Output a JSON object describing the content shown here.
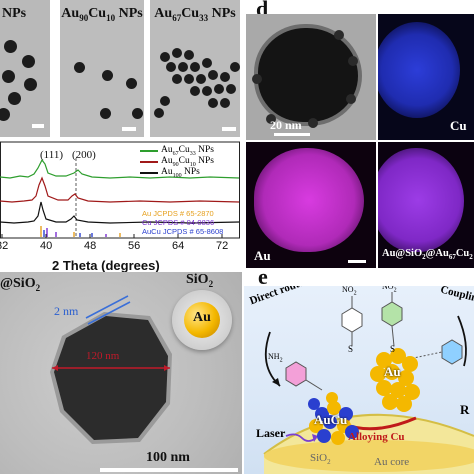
{
  "panel_d_letter": "d",
  "panel_e_letter": "e",
  "tem_labels": [
    {
      "main": "NPs",
      "prefix": "",
      "sub": ""
    },
    {
      "main": "Au",
      "sub1": "90",
      "mid": "Cu",
      "sub2": "10",
      "tail": " NPs"
    },
    {
      "main": "Au",
      "sub1": "67",
      "mid": "Cu",
      "sub2": "33",
      "tail": " NPs"
    }
  ],
  "xrd": {
    "peak1": "(111)",
    "peak2": "(200)",
    "xlabel": "2 Theta (degrees)",
    "xticks": [
      "32",
      "40",
      "48",
      "56",
      "64",
      "72"
    ],
    "legend": [
      {
        "a": "Au",
        "s1": "67",
        "b": "Cu",
        "s2": "33",
        "c": " NPs",
        "color": "#2e9e2e"
      },
      {
        "a": "Au",
        "s1": "90",
        "b": "Cu",
        "s2": "10",
        "c": " NPs",
        "color": "#a01919"
      },
      {
        "a": "Au",
        "s1": "100",
        "b": "",
        "s2": "",
        "c": " NPs",
        "color": "#111111"
      }
    ],
    "refs": [
      {
        "text": "Au JCPDS # 65-2870",
        "color": "#e6a01e"
      },
      {
        "text": "Cu JCPDS # 04-0836",
        "color": "#7a2fd0"
      },
      {
        "text": "AuCu JCPDS # 65-8608",
        "color": "#2a3fcf"
      }
    ]
  },
  "d_panel": {
    "scale_text": "20 nm",
    "cu_label": "Cu",
    "au_label": "Au",
    "composite": {
      "a": "Au@SiO",
      "s1": "2",
      "b": "@Au",
      "s2": "67",
      "c": "Cu",
      "s3": "2"
    }
  },
  "c_panel": {
    "title_a": "@SiO",
    "title_sub": "2",
    "thickness": "2 nm",
    "diameter": "120 nm",
    "scale_text": "100 nm",
    "sio2_label": "SiO",
    "sio2_sub": "2",
    "au_label": "Au"
  },
  "e_panel": {
    "direct_route": "Direct route",
    "coupling": "Couplin",
    "no2_a": "NO",
    "no2_b": "NO",
    "nh2": "NH",
    "s_labels": [
      "S",
      "S"
    ],
    "aucu": "AuCu",
    "au": "Au",
    "alloying": "Alloying Cu",
    "laser": "Laser",
    "sio2": "SiO",
    "sio2_sub": "2",
    "au_core": "Au core",
    "r_label": "R"
  }
}
